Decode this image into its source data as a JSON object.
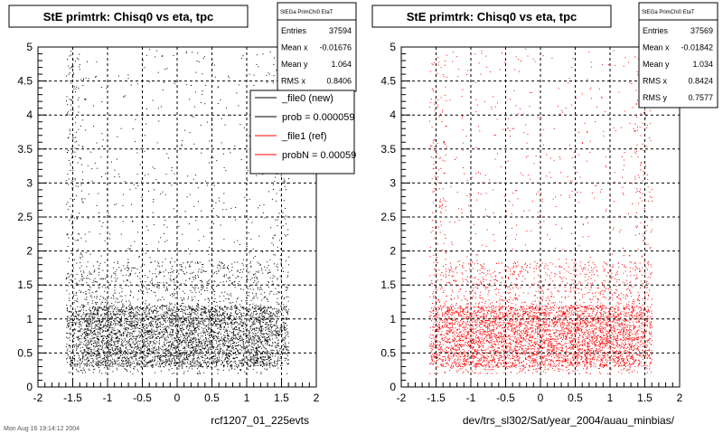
{
  "chart_data": [
    {
      "type": "scatter",
      "title": "StE primtrk: Chisq0 vs eta, tpc",
      "xlabel": "rcf1207_01_225evts",
      "xlim": [
        -2,
        2
      ],
      "ylim": [
        0,
        5
      ],
      "xticks": [
        "-2",
        "-1.5",
        "-1",
        "-0.5",
        "0",
        "0.5",
        "1",
        "1.5",
        "2"
      ],
      "yticks": [
        "0",
        "0.5",
        "1",
        "1.5",
        "2",
        "2.5",
        "3",
        "3.5",
        "4",
        "4.5",
        "5"
      ],
      "grid": true,
      "color": "#000000",
      "series": [
        {
          "x_range": [
            -1.6,
            1.6
          ],
          "y_peak": 0.8,
          "entries": 37594
        }
      ],
      "stats": {
        "name": "StEGa PrimChi0 EtaT",
        "rows": [
          {
            "label": "Entries",
            "value": "37594"
          },
          {
            "label": "Mean x",
            "value": "-0.01676"
          },
          {
            "label": "Mean y",
            "value": "1.064"
          },
          {
            "label": "RMS x",
            "value": "0.8406"
          }
        ]
      },
      "legend": {
        "position": "top-right",
        "entries": [
          {
            "label": "_file0 (new)",
            "color": "#000000"
          },
          {
            "label": "prob = 0.000059",
            "color": "#000000"
          },
          {
            "label": "_file1 (ref)",
            "color": "#ff0000"
          },
          {
            "label": "probN = 0.00059",
            "color": "#ff0000"
          }
        ]
      }
    },
    {
      "type": "scatter",
      "title": "StE primtrk: Chisq0 vs eta, tpc",
      "xlabel": "dev/trs_sl302/Sat/year_2004/auau_minbias/",
      "xlim": [
        -2,
        2
      ],
      "ylim": [
        0,
        5
      ],
      "xticks": [
        "-2",
        "-1.5",
        "-1",
        "-0.5",
        "0",
        "0.5",
        "1",
        "1.5",
        "2"
      ],
      "yticks": [
        "0",
        "0.5",
        "1",
        "1.5",
        "2",
        "2.5",
        "3",
        "3.5",
        "4",
        "4.5",
        "5"
      ],
      "grid": true,
      "color": "#ff0000",
      "series": [
        {
          "x_range": [
            -1.6,
            1.6
          ],
          "y_peak": 0.8,
          "entries": 37569
        }
      ],
      "stats": {
        "name": "StEGa PrimChi0 EtaT",
        "rows": [
          {
            "label": "Entries",
            "value": "37569"
          },
          {
            "label": "Mean x",
            "value": "-0.01842"
          },
          {
            "label": "Mean y",
            "value": "1.034"
          },
          {
            "label": "RMS x",
            "value": "0.8424"
          },
          {
            "label": "RMS y",
            "value": "0.7577"
          }
        ]
      }
    }
  ],
  "footer": "Mon Aug 16 19:14:12 2004"
}
